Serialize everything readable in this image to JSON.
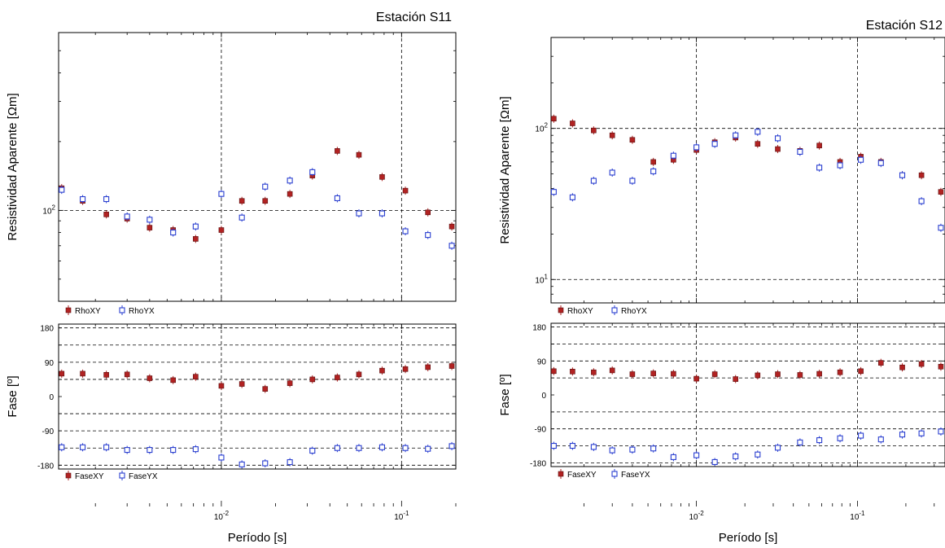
{
  "chart_data": [
    {
      "type": "scatter",
      "title": "Estación S11",
      "xlabel": "Período [s]",
      "x_scale": "log",
      "xlim": [
        0.00125,
        0.2
      ],
      "x_ticks": [
        {
          "v": 0.01,
          "label": "10",
          "exp": "-2"
        },
        {
          "v": 0.1,
          "label": "10",
          "exp": "-1"
        }
      ],
      "rho": {
        "ylabel": "Resistividad Aparente [Ωm]",
        "y_scale": "log",
        "ylim": [
          40,
          600
        ],
        "y_ticks": [
          {
            "v": 100,
            "label": "10",
            "exp": "2"
          }
        ],
        "y_grid": [
          100
        ],
        "legend": [
          "RhoXY",
          "RhoYX"
        ],
        "series": [
          {
            "name": "RhoXY",
            "color": "#b22222",
            "marker": "filled-square",
            "x": [
              0.0013,
              0.0017,
              0.0023,
              0.003,
              0.004,
              0.0054,
              0.0072,
              0.01,
              0.013,
              0.0175,
              0.024,
              0.032,
              0.044,
              0.058,
              0.078,
              0.105,
              0.14,
              0.19
            ],
            "y": [
              125,
              110,
              96,
              92,
              84,
              82,
              75,
              82,
              110,
              110,
              118,
              142,
              182,
              175,
              140,
              122,
              98,
              85
            ]
          },
          {
            "name": "RhoYX",
            "color": "#2a3fd0",
            "marker": "open-square",
            "x": [
              0.0013,
              0.0017,
              0.0023,
              0.003,
              0.004,
              0.0054,
              0.0072,
              0.01,
              0.013,
              0.0175,
              0.024,
              0.032,
              0.044,
              0.058,
              0.078,
              0.105,
              0.14,
              0.19
            ],
            "y": [
              123,
              112,
              112,
              94,
              91,
              80,
              85,
              118,
              93,
              127,
              135,
              147,
              113,
              97,
              97,
              81,
              78,
              70
            ]
          }
        ]
      },
      "phase": {
        "ylabel": "Fase [º]",
        "ylim": [
          -190,
          190
        ],
        "y_ticks": [
          {
            "v": 180,
            "label": "180"
          },
          {
            "v": 90,
            "label": "90"
          },
          {
            "v": 0,
            "label": "0"
          },
          {
            "v": -90,
            "label": "-90"
          },
          {
            "v": -180,
            "label": "-180"
          }
        ],
        "y_grid": [
          180,
          135,
          90,
          45,
          -45,
          -90,
          -135,
          -180
        ],
        "legend": [
          "FaseXY",
          "FaseYX"
        ],
        "series": [
          {
            "name": "FaseXY",
            "color": "#b22222",
            "marker": "filled-square",
            "x": [
              0.0013,
              0.0017,
              0.0023,
              0.003,
              0.004,
              0.0054,
              0.0072,
              0.01,
              0.013,
              0.0175,
              0.024,
              0.032,
              0.044,
              0.058,
              0.078,
              0.105,
              0.14,
              0.19
            ],
            "y": [
              60,
              60,
              57,
              58,
              48,
              43,
              52,
              28,
              33,
              20,
              35,
              45,
              50,
              58,
              68,
              72,
              77,
              80
            ]
          },
          {
            "name": "FaseYX",
            "color": "#2a3fd0",
            "marker": "open-square",
            "x": [
              0.0013,
              0.0017,
              0.0023,
              0.003,
              0.004,
              0.0054,
              0.0072,
              0.01,
              0.013,
              0.0175,
              0.024,
              0.032,
              0.044,
              0.058,
              0.078,
              0.105,
              0.14,
              0.19
            ],
            "y": [
              -133,
              -133,
              -133,
              -140,
              -140,
              -140,
              -138,
              -160,
              -178,
              -175,
              -172,
              -142,
              -135,
              -135,
              -133,
              -135,
              -137,
              -130
            ]
          }
        ]
      }
    },
    {
      "type": "scatter",
      "title": "Estación S12",
      "xlabel": "Período [s]",
      "x_scale": "log",
      "xlim": [
        0.00125,
        0.35
      ],
      "x_ticks": [
        {
          "v": 0.01,
          "label": "10",
          "exp": "-2"
        },
        {
          "v": 0.1,
          "label": "10",
          "exp": "-1"
        }
      ],
      "rho": {
        "ylabel": "Resistividad Aparente [Ωm]",
        "y_scale": "log",
        "ylim": [
          7,
          400
        ],
        "y_ticks": [
          {
            "v": 10,
            "label": "10",
            "exp": "1"
          },
          {
            "v": 100,
            "label": "10",
            "exp": "2"
          }
        ],
        "y_grid": [
          10,
          100
        ],
        "legend": [
          "RhoXY",
          "RhoYX"
        ],
        "series": [
          {
            "name": "RhoXY",
            "color": "#b22222",
            "marker": "filled-square",
            "x": [
              0.0013,
              0.0017,
              0.0023,
              0.003,
              0.004,
              0.0054,
              0.0072,
              0.01,
              0.013,
              0.0175,
              0.024,
              0.032,
              0.044,
              0.058,
              0.078,
              0.105,
              0.14,
              0.19,
              0.25,
              0.33
            ],
            "y": [
              116,
              108,
              97,
              90,
              84,
              60,
              62,
              72,
              81,
              87,
              79,
              73,
              71,
              77,
              60,
              65,
              60,
              49,
              49,
              38
            ]
          },
          {
            "name": "RhoYX",
            "color": "#2a3fd0",
            "marker": "open-square",
            "x": [
              0.0013,
              0.0017,
              0.0023,
              0.003,
              0.004,
              0.0054,
              0.0072,
              0.01,
              0.013,
              0.0175,
              0.024,
              0.032,
              0.044,
              0.058,
              0.078,
              0.105,
              0.14,
              0.19,
              0.25,
              0.33
            ],
            "y": [
              38,
              35,
              45,
              51,
              45,
              52,
              66,
              75,
              79,
              90,
              95,
              86,
              70,
              55,
              57,
              62,
              59,
              49,
              33,
              22
            ]
          }
        ]
      },
      "phase": {
        "ylabel": "Fase [º]",
        "ylim": [
          -190,
          190
        ],
        "y_ticks": [
          {
            "v": 180,
            "label": "180"
          },
          {
            "v": 90,
            "label": "90"
          },
          {
            "v": 0,
            "label": "0"
          },
          {
            "v": -90,
            "label": "-90"
          },
          {
            "v": -180,
            "label": "-180"
          }
        ],
        "y_grid": [
          180,
          135,
          90,
          45,
          -45,
          -90,
          -135,
          -180
        ],
        "legend": [
          "FaseXY",
          "FaseYX"
        ],
        "series": [
          {
            "name": "FaseXY",
            "color": "#b22222",
            "marker": "filled-square",
            "x": [
              0.0013,
              0.0017,
              0.0023,
              0.003,
              0.004,
              0.0054,
              0.0072,
              0.01,
              0.013,
              0.0175,
              0.024,
              0.032,
              0.044,
              0.058,
              0.078,
              0.105,
              0.14,
              0.19,
              0.25,
              0.33
            ],
            "y": [
              63,
              62,
              60,
              65,
              55,
              57,
              56,
              43,
              55,
              42,
              52,
              55,
              53,
              56,
              60,
              63,
              85,
              73,
              82,
              75
            ]
          },
          {
            "name": "FaseYX",
            "color": "#2a3fd0",
            "marker": "open-square",
            "x": [
              0.0013,
              0.0017,
              0.0023,
              0.003,
              0.004,
              0.0054,
              0.0072,
              0.01,
              0.013,
              0.0175,
              0.024,
              0.032,
              0.044,
              0.058,
              0.078,
              0.105,
              0.14,
              0.19,
              0.25,
              0.33
            ],
            "y": [
              -135,
              -135,
              -138,
              -147,
              -145,
              -142,
              -165,
              -160,
              -178,
              -163,
              -158,
              -140,
              -126,
              -120,
              -115,
              -108,
              -118,
              -105,
              -102,
              -97
            ]
          }
        ]
      }
    }
  ]
}
